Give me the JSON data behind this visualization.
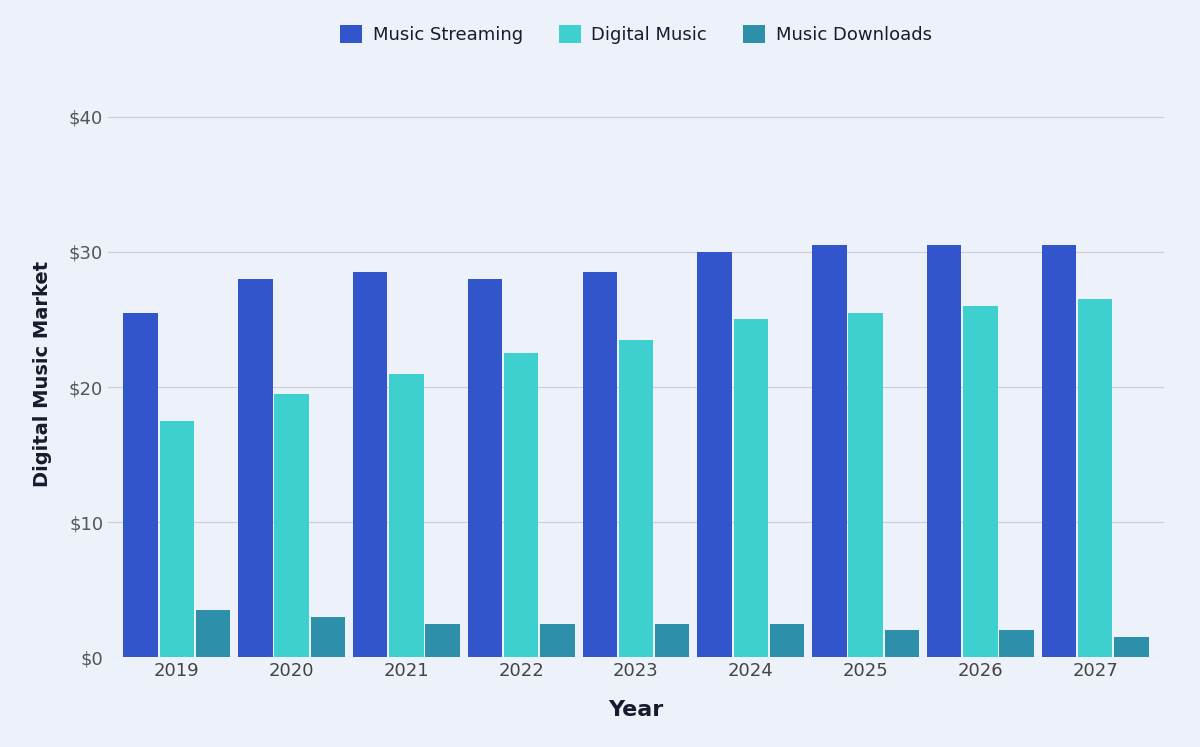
{
  "years": [
    2019,
    2020,
    2021,
    2022,
    2023,
    2024,
    2025,
    2026,
    2027
  ],
  "music_streaming": [
    25.5,
    28.0,
    28.5,
    28.0,
    28.5,
    30.0,
    30.5,
    30.5,
    30.5
  ],
  "digital_music": [
    17.5,
    19.5,
    21.0,
    22.5,
    23.5,
    25.0,
    25.5,
    26.0,
    26.5
  ],
  "music_downloads": [
    3.5,
    3.0,
    2.5,
    2.5,
    2.5,
    2.5,
    2.0,
    2.0,
    1.5
  ],
  "color_streaming": "#3355CC",
  "color_digital": "#3ECFCF",
  "color_downloads": "#2E8FAA",
  "background_color": "#EDF1FA",
  "ylabel": "Digital Music Market",
  "xlabel": "Year",
  "legend_labels": [
    "Music Streaming",
    "Digital Music",
    "Music Downloads"
  ],
  "ylim": [
    0,
    42
  ],
  "yticks": [
    0,
    10,
    20,
    30,
    40
  ],
  "ytick_labels": [
    "$0",
    "$10",
    "$20",
    "$30",
    "$40"
  ]
}
